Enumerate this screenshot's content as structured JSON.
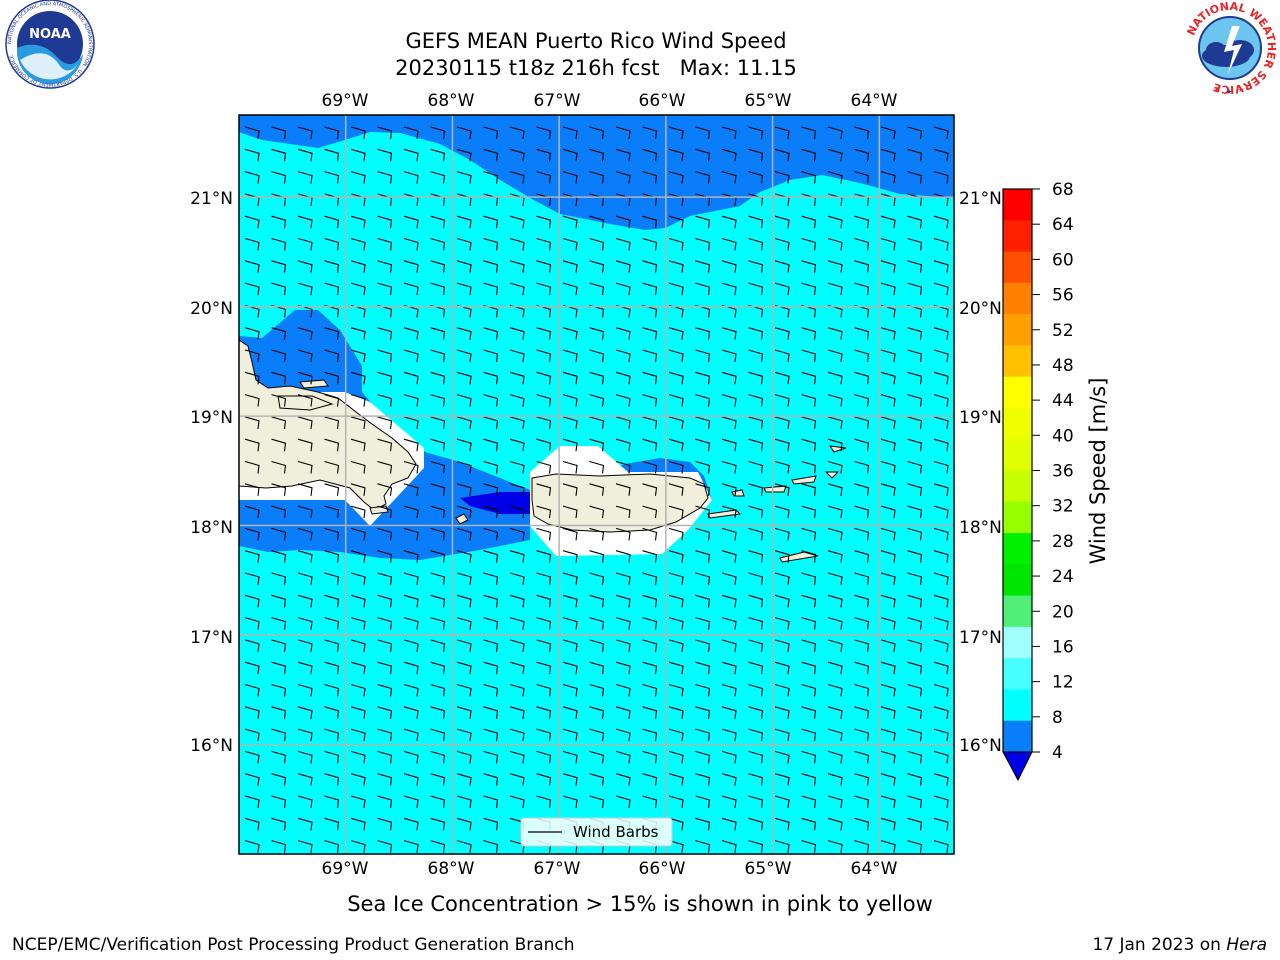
{
  "title": {
    "line1": "GEFS MEAN Puerto Rico Wind Speed",
    "line2": "20230115 t18z 216h fcst   Max: 11.15"
  },
  "map": {
    "lon_ticks": [
      "69°W",
      "68°W",
      "67°W",
      "66°W",
      "65°W",
      "64°W"
    ],
    "lat_ticks_left": [
      "21°N",
      "20°N",
      "19°N",
      "18°N",
      "17°N",
      "16°N"
    ],
    "lat_ticks_right": [
      "21°N",
      "20°N",
      "19°N",
      "18°N",
      "17°N",
      "16°N"
    ],
    "lon_range": [
      -70.0,
      -63.3
    ],
    "lat_range": [
      15.0,
      21.75
    ],
    "colors": {
      "calm_4_8": "#0a7dfa",
      "light_8_12": "#00ffff",
      "below_4": "#0000e6",
      "land": "#efefdc",
      "grid": "#b4b4b4"
    }
  },
  "legend": {
    "label": "Wind Barbs"
  },
  "colorbar": {
    "label": "Wind Speed [m/s]",
    "ticks": [
      "68",
      "64",
      "60",
      "56",
      "52",
      "48",
      "44",
      "40",
      "36",
      "32",
      "28",
      "24",
      "20",
      "16",
      "12",
      "8",
      "4"
    ],
    "colors": [
      "#ff0000",
      "#ff2000",
      "#ff5000",
      "#ff8000",
      "#ffa000",
      "#ffc000",
      "#ffff00",
      "#f0ff00",
      "#e0ff00",
      "#c8ff00",
      "#96ff00",
      "#00f000",
      "#00e600",
      "#50f078",
      "#a0ffff",
      "#46ffff",
      "#00ffff",
      "#0a7dfa"
    ],
    "extend_color": "#0000e6"
  },
  "footer": {
    "note": "Sea Ice Concentration > 15% is shown in pink to yellow",
    "left": "NCEP/EMC/Verification Post Processing Product Generation Branch",
    "date": "17 Jan 2023 on ",
    "machine": "Hera"
  },
  "logos": {
    "noaa": "NOAA",
    "noaa_ring": "NATIONAL OCEANIC AND ATMOSPHERIC ADMINISTRATION · U.S. DEPARTMENT OF COMMERCE",
    "nws_ring": "NATIONAL WEATHER SERVICE"
  }
}
